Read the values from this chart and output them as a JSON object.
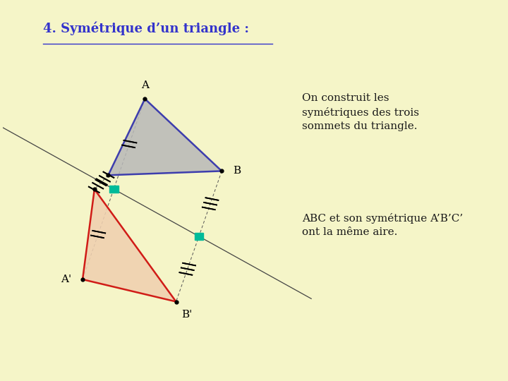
{
  "bg_color": "#f5f5c8",
  "title": "4. Symétrique d’un triangle :",
  "title_color": "#3333cc",
  "title_fontsize": 13,
  "text1": "On construit les\nsymétriques des trois\nsommets du triangle.",
  "text2": "ABC et son symétrique A’B’C’\nont la même aire.",
  "text_fontsize": 11,
  "triangle_fill": "#b8b8b8",
  "triangle_edge": "#2222aa",
  "symmetric_fill": "#f0d0b0",
  "symmetric_edge": "#cc0000",
  "green_sq_color": "#00bb99",
  "dot_color": "#000000",
  "axis_line_color": "#444444",
  "construct_line_color": "#555555"
}
